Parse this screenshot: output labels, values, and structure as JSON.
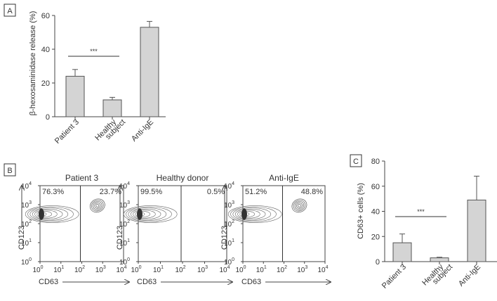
{
  "chart_data": [
    {
      "panel": "A",
      "type": "bar",
      "ylabel": "β-hexosaminidase release (%)",
      "ylim": [
        0,
        60
      ],
      "yticks": [
        0,
        20,
        40,
        60
      ],
      "categories": [
        "Patient 3",
        "Healthy subject",
        "Anti-IgE"
      ],
      "category_lines": [
        [
          "Patient 3"
        ],
        [
          "Healthy",
          "subject"
        ],
        [
          "Anti-IgE"
        ]
      ],
      "values": [
        24,
        10,
        53
      ],
      "errors": [
        4,
        1.5,
        3.5
      ],
      "significance": {
        "from": 0,
        "to": 1,
        "label": "***"
      },
      "bar_color": "#d4d4d4"
    },
    {
      "panel": "C",
      "type": "bar",
      "ylabel": "CD63+ cells (%)",
      "ylim": [
        0,
        80
      ],
      "yticks": [
        0,
        20,
        40,
        60,
        80
      ],
      "categories": [
        "Patient 3",
        "Healthy subject",
        "Anti-IgE"
      ],
      "category_lines": [
        [
          "Patient 3"
        ],
        [
          "Healthy",
          "subject"
        ],
        [
          "Anti-IgE"
        ]
      ],
      "values": [
        15,
        3,
        49
      ],
      "errors": [
        7,
        0.5,
        19
      ],
      "significance": {
        "from": 0,
        "to": 1,
        "label": "***"
      },
      "bar_color": "#d4d4d4"
    }
  ],
  "flow_panels": {
    "label": "B",
    "ylabel": "CD123",
    "xlabel": "CD63",
    "tick_base": "10",
    "tick_exponents": [
      "0",
      "1",
      "2",
      "3",
      "4"
    ],
    "plots": [
      {
        "title": "Patient 3",
        "left_pct": "76.3%",
        "right_pct": "23.7%",
        "right_population": true
      },
      {
        "title": "Healthy donor",
        "left_pct": "99.5%",
        "right_pct": "0.5%",
        "right_population": false
      },
      {
        "title": "Anti-IgE",
        "left_pct": "51.2%",
        "right_pct": "48.8%",
        "right_population": true
      }
    ]
  }
}
